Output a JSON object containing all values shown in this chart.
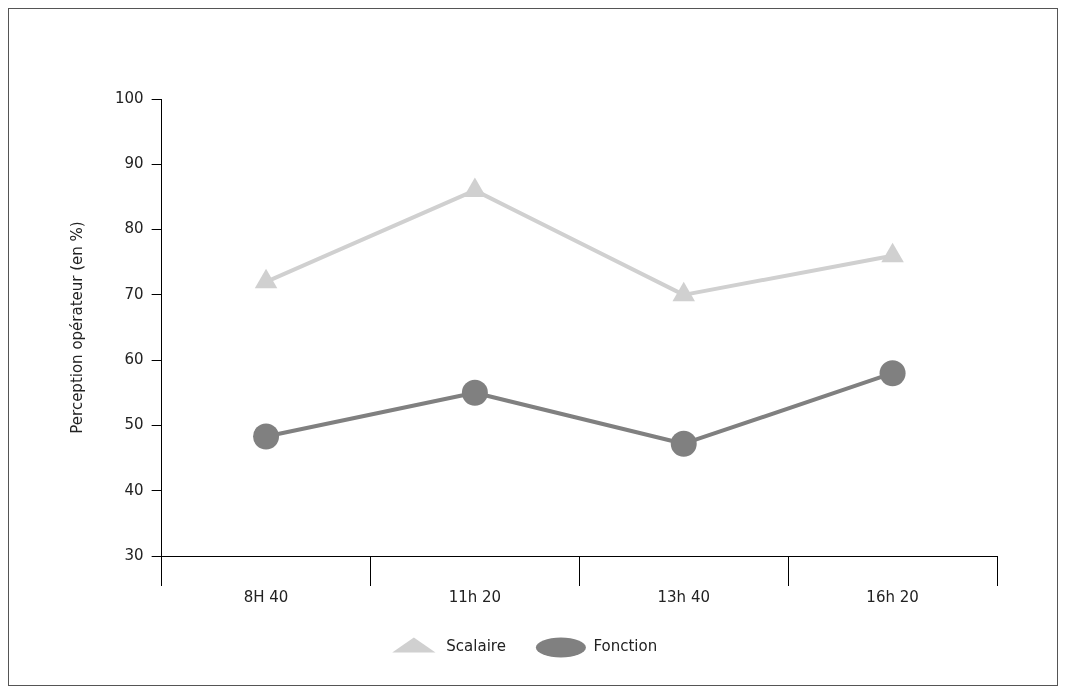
{
  "chart_data": {
    "type": "line",
    "ylabel": "Perception opérateur (en %)",
    "categories": [
      "8H 40",
      "11h 20",
      "13h 40",
      "16h 20"
    ],
    "series": [
      {
        "name": "Scalaire",
        "color": "#d0d0d0",
        "marker": "triangle",
        "values": [
          72,
          86,
          70,
          76
        ]
      },
      {
        "name": "Fonction",
        "color": "#808080",
        "marker": "circle",
        "values": [
          48.3,
          55,
          47.2,
          58
        ]
      }
    ],
    "ylim": [
      30,
      100
    ],
    "yticks": [
      30,
      40,
      50,
      60,
      70,
      80,
      90,
      100
    ],
    "grid": false,
    "legend": "bottom",
    "line_style": "solid"
  }
}
